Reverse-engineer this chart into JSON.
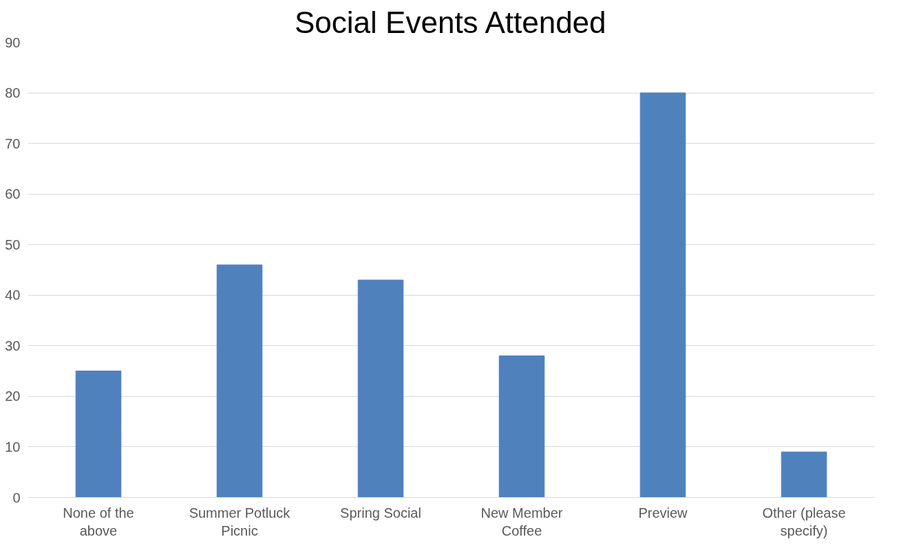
{
  "chart_data": {
    "type": "bar",
    "title": "Social Events Attended",
    "categories": [
      "None of the above",
      "Summer Potluck Picnic",
      "Spring Social",
      "New Member Coffee",
      "Preview",
      "Other (please specify)"
    ],
    "values": [
      25,
      46,
      43,
      28,
      80,
      9
    ],
    "color": "#4f81bd",
    "ylim": [
      0,
      90
    ],
    "yticks": [
      0,
      10,
      20,
      30,
      40,
      50,
      60,
      70,
      80,
      90
    ],
    "grid": "y"
  }
}
